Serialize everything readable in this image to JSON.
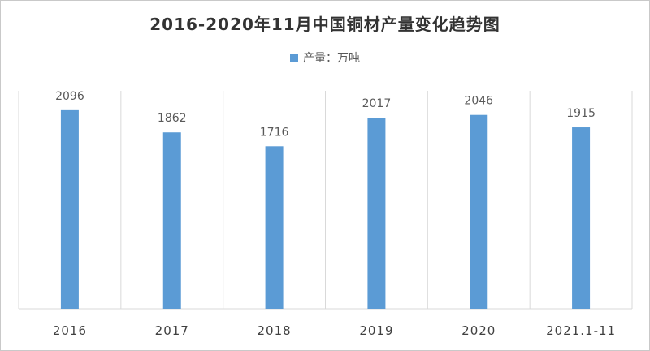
{
  "chart_data": {
    "type": "bar",
    "title": "2016-2020年11月中国铜材产量变化趋势图",
    "categories": [
      "2016",
      "2017",
      "2018",
      "2019",
      "2020",
      "2021.1-11"
    ],
    "series": [
      {
        "name": "产量：万吨",
        "values": [
          2096,
          1862,
          1716,
          2017,
          2046,
          1915
        ]
      }
    ],
    "colors": {
      "bar": "#5b9bd5",
      "grid": "#d9d9d9"
    },
    "ylim": [
      0,
      2300
    ],
    "grid": "vertical",
    "legend": "top-center",
    "data_labels": true
  }
}
